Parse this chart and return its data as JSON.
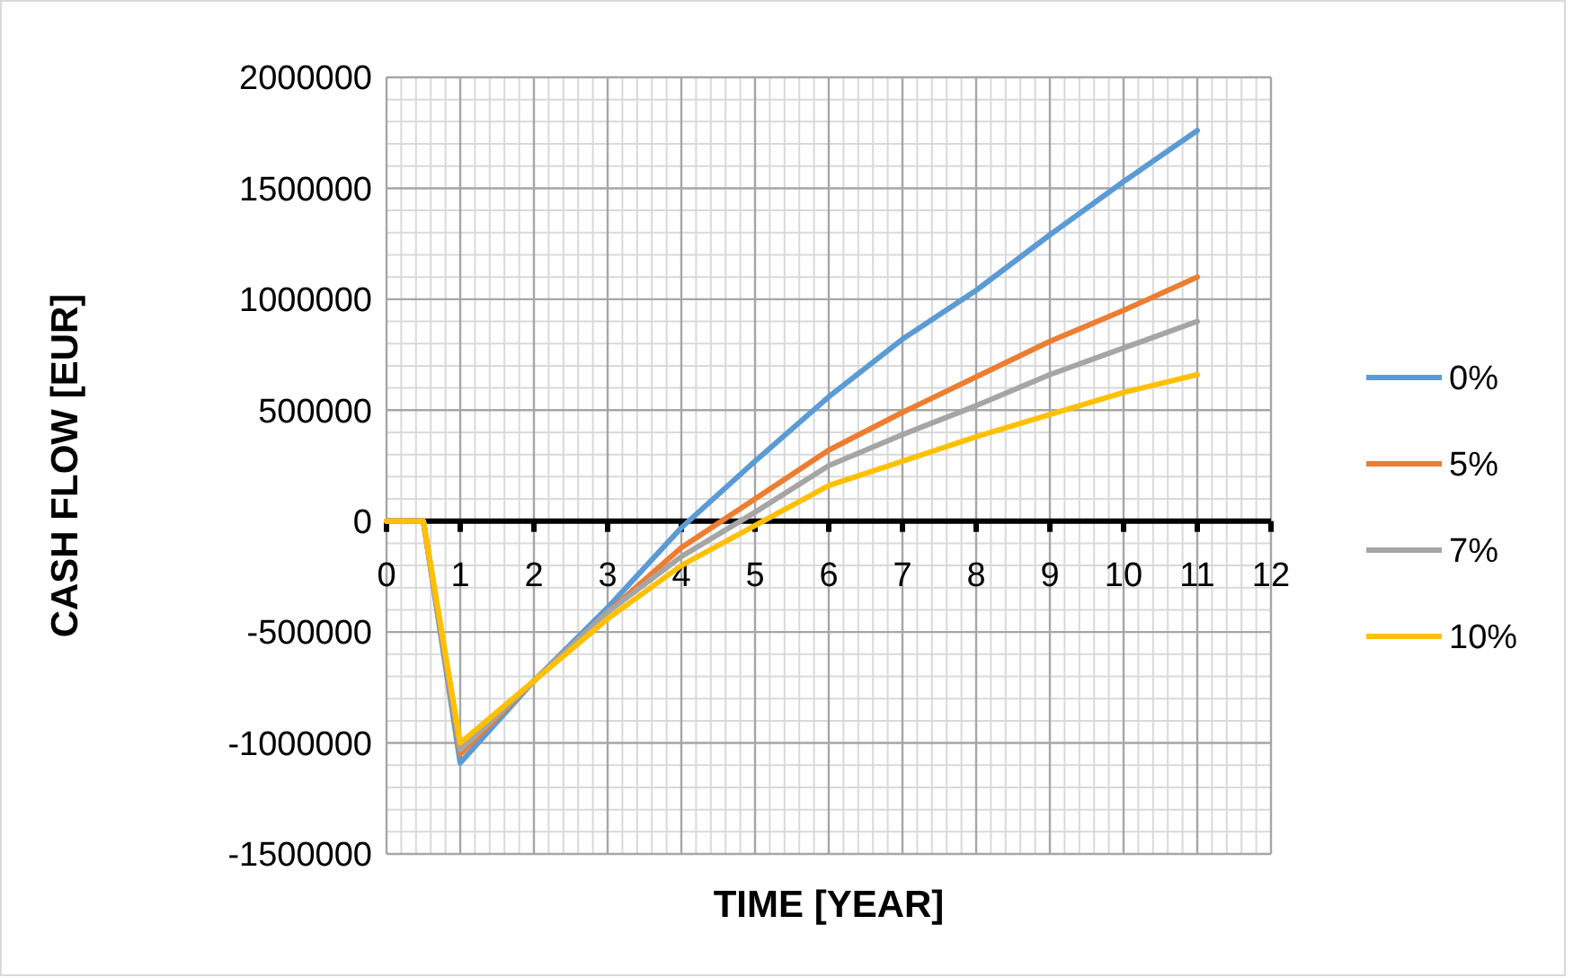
{
  "chart_data": {
    "type": "line",
    "xlabel": "TIME [YEAR]",
    "ylabel": "CASH FLOW [EUR]",
    "x": [
      0,
      0.5,
      1,
      2,
      3,
      4,
      5,
      6,
      7,
      8,
      9,
      10,
      11
    ],
    "series": [
      {
        "name": "0%",
        "color": "#5b9bd5",
        "values": [
          0,
          0,
          -1090000,
          -720000,
          -390000,
          -30000,
          270000,
          560000,
          820000,
          1040000,
          1290000,
          1530000,
          1760000
        ]
      },
      {
        "name": "5%",
        "color": "#ed7d31",
        "values": [
          0,
          0,
          -1050000,
          -720000,
          -410000,
          -120000,
          100000,
          320000,
          490000,
          650000,
          810000,
          950000,
          1100000
        ]
      },
      {
        "name": "7%",
        "color": "#a5a5a5",
        "values": [
          0,
          0,
          -1030000,
          -720000,
          -410000,
          -160000,
          40000,
          250000,
          390000,
          520000,
          660000,
          780000,
          900000
        ]
      },
      {
        "name": "10%",
        "color": "#ffc000",
        "values": [
          0,
          0,
          -1000000,
          -720000,
          -440000,
          -200000,
          -20000,
          160000,
          270000,
          380000,
          480000,
          580000,
          660000
        ]
      }
    ],
    "xlim": [
      0,
      12
    ],
    "xticks": [
      0,
      1,
      2,
      3,
      4,
      5,
      6,
      7,
      8,
      9,
      10,
      11,
      12
    ],
    "ylim": [
      -1500000,
      2000000
    ],
    "yticks": [
      -1500000,
      -1000000,
      -500000,
      0,
      500000,
      1000000,
      1500000,
      2000000
    ],
    "grid": true,
    "legend": "right",
    "marker": "none",
    "line_style": "solid"
  }
}
